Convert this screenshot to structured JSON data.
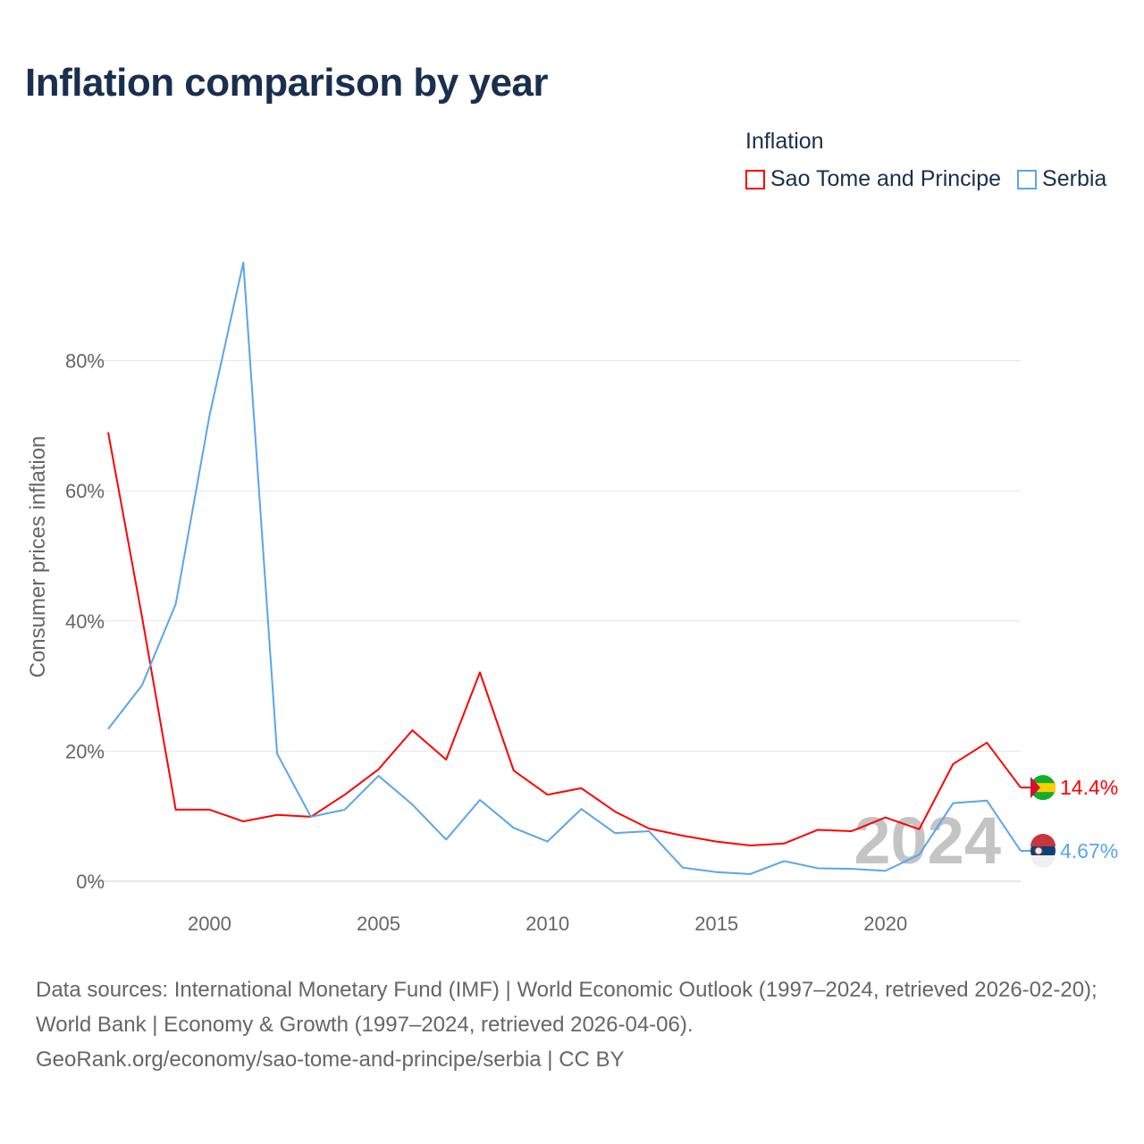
{
  "title": "Inflation comparison by year",
  "legend_title": "Inflation",
  "footer": {
    "sources": "Data sources: International Monetary Fund (IMF) | World Economic Outlook (1997–2024, retrieved 2026-02-20); World Bank | Economy & Growth (1997–2024, retrieved 2026-04-06).",
    "credit": "GeoRank.org/economy/sao-tome-and-principe/serbia | CC BY"
  },
  "chart_data": {
    "type": "line",
    "title": "Inflation comparison by year",
    "xlabel": "",
    "ylabel": "Consumer prices inflation",
    "xlim": [
      1997,
      2024
    ],
    "ylim": [
      0,
      100
    ],
    "x_ticks": [
      2000,
      2005,
      2010,
      2015,
      2020
    ],
    "y_ticks": [
      0,
      20,
      40,
      60,
      80
    ],
    "y_tick_labels": [
      "0%",
      "20%",
      "40%",
      "60%",
      "80%"
    ],
    "x_tick_labels": [
      "2000",
      "2005",
      "2010",
      "2015",
      "2020"
    ],
    "grid": true,
    "legend_position": "top-right",
    "watermark_year": "2024",
    "x": [
      1997,
      1998,
      1999,
      2000,
      2001,
      2002,
      2003,
      2004,
      2005,
      2006,
      2007,
      2008,
      2009,
      2010,
      2011,
      2012,
      2013,
      2014,
      2015,
      2016,
      2017,
      2018,
      2019,
      2020,
      2021,
      2022,
      2023,
      2024
    ],
    "series": [
      {
        "name": "Sao Tome and Principe",
        "color": "#ff0000",
        "end_label": "14.4%",
        "values": [
          69.0,
          40.7,
          11.0,
          11.0,
          9.2,
          10.2,
          9.9,
          13.3,
          17.2,
          23.2,
          18.7,
          32.1,
          17.0,
          13.3,
          14.3,
          10.7,
          8.1,
          7.0,
          6.1,
          5.5,
          5.8,
          7.9,
          7.7,
          9.8,
          8.0,
          18.0,
          21.3,
          14.4
        ]
      },
      {
        "name": "Serbia",
        "color": "#5aa5ec",
        "end_label": "4.67%",
        "values": [
          23.4,
          30.1,
          42.6,
          71.6,
          95.1,
          19.6,
          9.9,
          11.0,
          16.2,
          11.8,
          6.4,
          12.5,
          8.2,
          6.1,
          11.1,
          7.4,
          7.7,
          2.1,
          1.4,
          1.1,
          3.1,
          2.0,
          1.9,
          1.6,
          4.1,
          12.0,
          12.4,
          4.67
        ]
      }
    ]
  }
}
